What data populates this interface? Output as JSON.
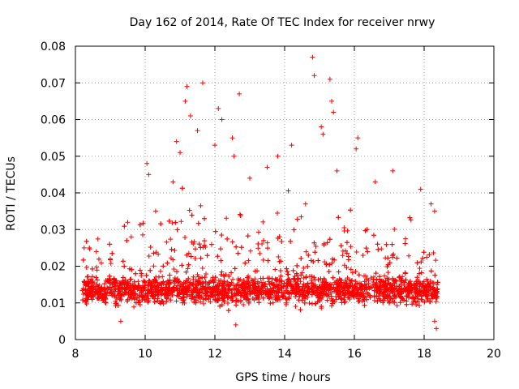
{
  "chart_data": {
    "type": "scatter",
    "title": "Day 162 of 2014, Rate Of TEC Index for receiver nrwy",
    "xlabel": "GPS time / hours",
    "ylabel": "ROTI / TECUs",
    "xlim": [
      8,
      20
    ],
    "ylim": [
      0,
      0.08
    ],
    "x_ticks": [
      8,
      10,
      12,
      14,
      16,
      18,
      20
    ],
    "y_ticks": [
      0,
      0.01,
      0.02,
      0.03,
      0.04,
      0.05,
      0.06,
      0.07,
      0.08
    ],
    "x_tick_labels": [
      "8",
      "10",
      "12",
      "14",
      "16",
      "18",
      "20"
    ],
    "y_tick_labels": [
      "0",
      "0.01",
      "0.02",
      "0.03",
      "0.04",
      "0.05",
      "0.06",
      "0.07",
      "0.08"
    ],
    "grid": true,
    "marker": "+",
    "marker_color": "#ff0000",
    "data_range": {
      "x": [
        8.2,
        18.4
      ]
    },
    "series": [
      {
        "name": "nrwy",
        "points": [
          [
            8.25,
            0.025
          ],
          [
            8.3,
            0.015
          ],
          [
            8.4,
            0.025
          ],
          [
            8.6,
            0.024
          ],
          [
            9.0,
            0.022
          ],
          [
            9.5,
            0.032
          ],
          [
            9.6,
            0.028
          ],
          [
            10.05,
            0.048
          ],
          [
            10.1,
            0.045
          ],
          [
            10.3,
            0.035
          ],
          [
            10.8,
            0.043
          ],
          [
            10.9,
            0.054
          ],
          [
            11.0,
            0.051
          ],
          [
            11.15,
            0.065
          ],
          [
            11.2,
            0.069
          ],
          [
            11.3,
            0.061
          ],
          [
            11.5,
            0.057
          ],
          [
            11.65,
            0.07
          ],
          [
            12.0,
            0.053
          ],
          [
            12.1,
            0.063
          ],
          [
            12.2,
            0.06
          ],
          [
            12.5,
            0.055
          ],
          [
            12.55,
            0.05
          ],
          [
            12.7,
            0.067
          ],
          [
            13.0,
            0.044
          ],
          [
            13.5,
            0.047
          ],
          [
            13.8,
            0.05
          ],
          [
            14.2,
            0.053
          ],
          [
            14.6,
            0.037
          ],
          [
            14.8,
            0.077
          ],
          [
            14.85,
            0.072
          ],
          [
            15.05,
            0.058
          ],
          [
            15.1,
            0.056
          ],
          [
            15.3,
            0.071
          ],
          [
            15.35,
            0.065
          ],
          [
            15.4,
            0.062
          ],
          [
            15.5,
            0.046
          ],
          [
            16.1,
            0.055
          ],
          [
            16.05,
            0.052
          ],
          [
            16.6,
            0.043
          ],
          [
            17.1,
            0.046
          ],
          [
            17.9,
            0.041
          ],
          [
            18.2,
            0.037
          ],
          [
            18.3,
            0.035
          ],
          [
            18.35,
            0.003
          ],
          [
            18.3,
            0.005
          ],
          [
            12.6,
            0.004
          ],
          [
            9.3,
            0.005
          ]
        ]
      }
    ]
  }
}
